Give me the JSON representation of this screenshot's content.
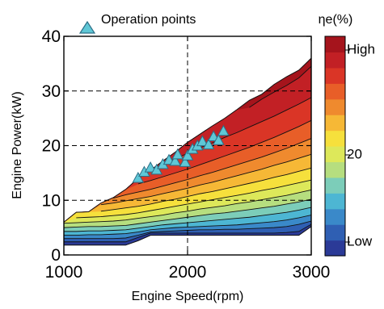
{
  "chart_data": {
    "type": "contour",
    "xlabel": "Engine Speed(rpm)",
    "ylabel": "Engine Power(kW)",
    "xlim": [
      1000,
      3000
    ],
    "ylim": [
      0,
      40
    ],
    "xticks": [
      1000,
      2000,
      3000
    ],
    "yticks": [
      0,
      10,
      20,
      30,
      40
    ],
    "grid": "dashed at x=2000, y=10, 20, 30",
    "legend": {
      "label": "Operation points",
      "marker": "triangle",
      "color": "#5fc7d6",
      "placement": "top"
    },
    "colorbar": {
      "title": "ηe(%)",
      "tick_labels": [
        "High",
        "20",
        "Low"
      ],
      "colors": [
        "#2b3a97",
        "#2f5fb3",
        "#3a89c9",
        "#4db6d3",
        "#7ccdb9",
        "#b6de7f",
        "#dde85a",
        "#f6e03c",
        "#f6b836",
        "#ef8a2e",
        "#e85e28",
        "#da3526",
        "#c22025",
        "#a5141c"
      ]
    },
    "contour_x": [
      1000,
      1100,
      1200,
      1300,
      1400,
      1500,
      1600,
      1700,
      1800,
      1900,
      2000,
      2100,
      2200,
      2300,
      2400,
      2500,
      2600,
      2700,
      2800,
      2900,
      3000
    ],
    "boundary": {
      "upper": [
        6.0,
        7.8,
        7.9,
        9.5,
        10.5,
        12.0,
        14.0,
        15.5,
        17.2,
        18.8,
        20.6,
        22.1,
        23.6,
        25.0,
        26.6,
        28.3,
        29.4,
        31.2,
        32.6,
        33.8,
        36.0
      ],
      "lower": [
        1.8,
        1.8,
        1.8,
        1.8,
        1.8,
        1.8,
        2.6,
        3.6,
        3.6,
        3.6,
        3.6,
        3.6,
        3.6,
        3.6,
        3.6,
        3.6,
        3.6,
        3.6,
        3.6,
        3.6,
        5.2
      ]
    },
    "contour_levels": [
      [
        2.4,
        2.4,
        2.4,
        2.4,
        2.4,
        2.4,
        3.2,
        4.0,
        4.0,
        4.0,
        4.0,
        4.0,
        4.0,
        4.0,
        4.0,
        4.0,
        4.0,
        4.0,
        4.1,
        4.3,
        5.6
      ],
      [
        3.0,
        3.0,
        3.0,
        3.0,
        3.0,
        3.1,
        3.6,
        4.2,
        4.3,
        4.4,
        4.5,
        4.6,
        4.6,
        4.7,
        4.7,
        4.8,
        4.9,
        5.0,
        5.2,
        5.6,
        6.2
      ],
      [
        3.6,
        3.6,
        3.7,
        3.7,
        3.8,
        3.9,
        4.2,
        4.6,
        4.8,
        5.0,
        5.1,
        5.2,
        5.3,
        5.4,
        5.5,
        5.7,
        5.9,
        6.1,
        6.4,
        6.8,
        7.3
      ],
      [
        4.3,
        4.3,
        4.4,
        4.4,
        4.5,
        4.6,
        4.9,
        5.2,
        5.5,
        5.7,
        5.9,
        6.1,
        6.3,
        6.5,
        6.7,
        6.9,
        7.2,
        7.5,
        7.8,
        8.2,
        8.7
      ],
      [
        5.0,
        5.1,
        5.2,
        5.2,
        5.3,
        5.4,
        5.7,
        6.0,
        6.3,
        6.6,
        6.9,
        7.2,
        7.5,
        7.7,
        8.0,
        8.3,
        8.6,
        8.9,
        9.3,
        9.7,
        10.2
      ],
      [
        5.8,
        5.9,
        6.0,
        6.1,
        6.2,
        6.4,
        6.7,
        7.0,
        7.3,
        7.7,
        8.0,
        8.4,
        8.7,
        9.0,
        9.4,
        9.7,
        10.1,
        10.5,
        10.9,
        11.4,
        11.9
      ],
      [
        6.6,
        6.8,
        6.9,
        7.0,
        7.2,
        7.4,
        7.7,
        8.1,
        8.5,
        8.9,
        9.3,
        9.7,
        10.1,
        10.5,
        10.9,
        11.3,
        11.8,
        12.2,
        12.7,
        13.2,
        13.7
      ],
      [
        7.5,
        7.8,
        7.9,
        8.0,
        8.3,
        8.6,
        8.9,
        9.3,
        9.8,
        10.2,
        10.7,
        11.2,
        11.6,
        12.1,
        12.6,
        13.1,
        13.6,
        14.2,
        14.7,
        15.3,
        15.9
      ],
      [
        null,
        null,
        8.9,
        9.2,
        9.5,
        9.9,
        10.3,
        10.7,
        11.2,
        11.7,
        12.2,
        12.8,
        13.3,
        13.9,
        14.5,
        15.1,
        15.7,
        16.4,
        17.0,
        17.7,
        18.4
      ],
      [
        null,
        null,
        null,
        null,
        10.4,
        11.0,
        11.5,
        12.0,
        12.6,
        13.2,
        13.8,
        14.5,
        15.1,
        15.8,
        16.5,
        17.2,
        17.9,
        18.7,
        19.5,
        20.4,
        21.3
      ],
      [
        null,
        null,
        null,
        null,
        null,
        null,
        13.0,
        13.6,
        14.3,
        15.0,
        15.7,
        16.5,
        17.3,
        18.1,
        18.9,
        19.7,
        20.6,
        21.5,
        22.5,
        23.5,
        24.6
      ],
      [
        null,
        null,
        null,
        null,
        null,
        null,
        null,
        15.3,
        16.6,
        17.6,
        18.6,
        19.6,
        20.5,
        21.5,
        22.4,
        23.4,
        24.4,
        25.4,
        26.5,
        27.6,
        28.8
      ],
      [
        null,
        null,
        null,
        null,
        null,
        null,
        null,
        null,
        null,
        null,
        null,
        null,
        null,
        null,
        null,
        27.0,
        28.5,
        29.8,
        31.0,
        32.4,
        34.5
      ]
    ],
    "operation_points": [
      {
        "x": 1600,
        "y": 14.1
      },
      {
        "x": 1650,
        "y": 15.2
      },
      {
        "x": 1700,
        "y": 16.0
      },
      {
        "x": 1750,
        "y": 15.6
      },
      {
        "x": 1800,
        "y": 16.6
      },
      {
        "x": 1850,
        "y": 17.4
      },
      {
        "x": 1900,
        "y": 17.2
      },
      {
        "x": 1920,
        "y": 18.4
      },
      {
        "x": 1980,
        "y": 17.0
      },
      {
        "x": 2000,
        "y": 18.2
      },
      {
        "x": 2040,
        "y": 19.4
      },
      {
        "x": 2080,
        "y": 20.0
      },
      {
        "x": 2120,
        "y": 20.8
      },
      {
        "x": 2170,
        "y": 20.2
      },
      {
        "x": 2210,
        "y": 21.7
      },
      {
        "x": 2250,
        "y": 21.0
      },
      {
        "x": 2290,
        "y": 22.7
      }
    ]
  }
}
